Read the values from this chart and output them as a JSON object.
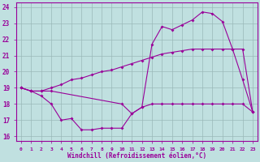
{
  "xlabel": "Windchill (Refroidissement éolien,°C)",
  "bg_color": "#c0e0e0",
  "grid_color": "#9ab8b8",
  "line_color": "#990099",
  "xlim": [
    -0.5,
    23.5
  ],
  "ylim": [
    15.7,
    24.3
  ],
  "xticks": [
    0,
    1,
    2,
    3,
    4,
    5,
    6,
    7,
    8,
    9,
    10,
    11,
    12,
    13,
    14,
    15,
    16,
    17,
    18,
    19,
    20,
    21,
    22,
    23
  ],
  "yticks": [
    16,
    17,
    18,
    19,
    20,
    21,
    22,
    23,
    24
  ],
  "line1_x": [
    0,
    1,
    2,
    3,
    4,
    5,
    6,
    7,
    8,
    9,
    10,
    11,
    12,
    13,
    14,
    15,
    16,
    17,
    18,
    19,
    20,
    21,
    22,
    23
  ],
  "line1_y": [
    19.0,
    18.8,
    18.5,
    18.0,
    17.0,
    17.1,
    16.4,
    16.4,
    16.5,
    16.5,
    16.5,
    17.4,
    17.8,
    18.0,
    18.0,
    18.0,
    18.0,
    18.0,
    18.0,
    18.0,
    18.0,
    18.0,
    18.0,
    17.5
  ],
  "line2_x": [
    0,
    1,
    2,
    3,
    4,
    5,
    6,
    7,
    8,
    9,
    10,
    11,
    12,
    13,
    14,
    15,
    16,
    17,
    18,
    19,
    20,
    21,
    22,
    23
  ],
  "line2_y": [
    19.0,
    18.8,
    18.8,
    19.0,
    19.2,
    19.5,
    19.6,
    19.8,
    20.0,
    20.1,
    20.3,
    20.5,
    20.7,
    20.9,
    21.1,
    21.2,
    21.3,
    21.4,
    21.4,
    21.4,
    21.4,
    21.4,
    21.4,
    17.5
  ],
  "line3_x": [
    0,
    1,
    2,
    3,
    10,
    11,
    12,
    13,
    14,
    15,
    16,
    17,
    18,
    19,
    20,
    21,
    22,
    23
  ],
  "line3_y": [
    19.0,
    18.8,
    18.8,
    18.8,
    18.0,
    17.4,
    17.8,
    21.7,
    22.8,
    22.6,
    22.9,
    23.2,
    23.7,
    23.6,
    23.1,
    21.4,
    19.5,
    17.5
  ]
}
